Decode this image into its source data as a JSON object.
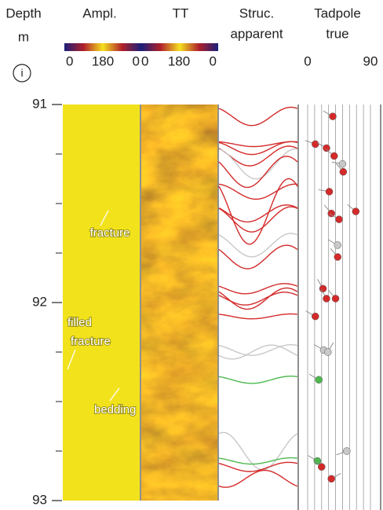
{
  "chart_data": {
    "type": "well-log",
    "headers": {
      "depth": "Depth",
      "depth_unit": "m",
      "info": "i",
      "ampl": "Ampl.",
      "tt": "TT",
      "struc": "Struc.",
      "struc2": "apparent",
      "tadpole": "Tadpole",
      "tadpole2": "true"
    },
    "colorbar_ticks": {
      "ampl": [
        0,
        180,
        {
          "value": 360,
          "label": "0"
        }
      ],
      "tt": [
        0,
        180,
        {
          "value": 360,
          "label": "0"
        }
      ]
    },
    "colorbar_lim": [
      0,
      360
    ],
    "ylim": [
      91,
      93
    ],
    "yticks": [
      91,
      92,
      93
    ],
    "yminorticks": [
      91.25,
      91.5,
      91.75,
      92.25,
      92.5,
      92.75
    ],
    "xlim": [
      0,
      90
    ],
    "xticks": [
      0,
      90
    ],
    "xminorticks": [
      10,
      20,
      30,
      40,
      50,
      60,
      70,
      80
    ],
    "annotations": [
      "fracture",
      "filled",
      "fracture",
      "bedding"
    ],
    "tadpoles": {
      "depth": [
        91.06,
        91.2,
        91.22,
        91.26,
        91.3,
        91.34,
        91.44,
        91.55,
        91.54,
        91.58,
        91.71,
        91.77,
        91.93,
        91.98,
        91.98,
        92.07,
        92.24,
        92.25,
        92.39,
        92.75,
        92.8,
        92.83,
        92.89
      ],
      "dip": [
        36,
        11,
        27,
        38,
        50,
        51,
        31,
        34,
        69,
        45,
        43,
        43,
        22,
        27,
        40,
        11,
        23,
        29,
        16,
        56,
        14,
        20,
        34
      ],
      "azimuth": [
        300,
        290,
        300,
        310,
        280,
        320,
        280,
        320,
        310,
        300,
        300,
        320,
        330,
        330,
        320,
        300,
        300,
        30,
        300,
        250,
        300,
        310,
        60
      ],
      "colors": [
        "#d42a2a",
        "#d42a2a",
        "#d42a2a",
        "#d42a2a",
        "#c8c8c8",
        "#d42a2a",
        "#d42a2a",
        "#d42a2a",
        "#d42a2a",
        "#d42a2a",
        "#c8c8c8",
        "#d42a2a",
        "#d42a2a",
        "#d42a2a",
        "#d42a2a",
        "#d42a2a",
        "#c8c8c8",
        "#c8c8c8",
        "#4db84d",
        "#c8c8c8",
        "#4db84d",
        "#d42a2a",
        "#d42a2a"
      ]
    }
  }
}
